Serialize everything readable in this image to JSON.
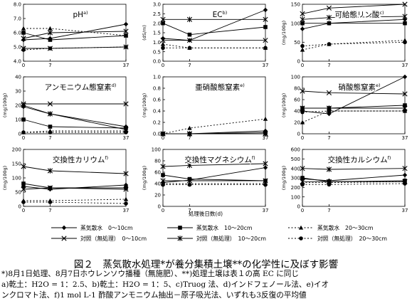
{
  "figure": {
    "caption": "図２　蒸気散水処理*が養分集積土壌**の化学性に及ぼす影響",
    "notes": [
      "*)8月1日処理、8月7日ホウレンソウ播種（無施肥）、**)処理土壌は表１の高 EC に同じ",
      "a)乾土：H2O = 1：2.5、b)乾土：H2O = 1：5、c)Truog 法、d)インドフェノール法、e)イオ",
      "ンクロマト法、f)1 mol L-1 酢酸アンモニウム抽出－原子吸光法、いずれも3反復の平均値"
    ]
  },
  "legend": {
    "items": [
      {
        "label": "蒸気散水　0～10cm",
        "marker": "diamond",
        "dash": "solid",
        "color": "#000000"
      },
      {
        "label": "蒸気散水　10～20cm",
        "marker": "square",
        "dash": "solid",
        "color": "#000000"
      },
      {
        "label": "蒸気散水　20～30cm",
        "marker": "triangle",
        "dash": "dotted",
        "color": "#000000"
      },
      {
        "label": "対照（無処理）　0～10cm",
        "marker": "x",
        "dash": "solid",
        "color": "#000000"
      },
      {
        "label": "対照（無処理）　10～20cm",
        "marker": "star",
        "dash": "solid",
        "color": "#000000"
      },
      {
        "label": "対照（無処理）　20～30cm",
        "marker": "circle",
        "dash": "dotted",
        "color": "#000000"
      }
    ]
  },
  "chart_data": [
    {
      "type": "line",
      "title": "pH",
      "title_sup": "a)",
      "ylabel": "",
      "x": [
        0,
        7,
        37
      ],
      "xticks": [
        "0",
        "7",
        "37"
      ],
      "ylim": [
        4.0,
        8.0
      ],
      "yticks": [
        "4.0",
        "5.0",
        "6.0",
        "7.0",
        "8.0"
      ],
      "grid": false,
      "series": [
        {
          "values": [
            5.5,
            5.6,
            6.6
          ]
        },
        {
          "values": [
            6.0,
            5.5,
            5.8
          ]
        },
        {
          "values": [
            6.3,
            6.3,
            5.8
          ]
        },
        {
          "values": [
            4.9,
            4.9,
            5.0
          ]
        },
        {
          "values": [
            5.6,
            6.0,
            6.1
          ]
        },
        {
          "values": [
            4.8,
            4.9,
            5.0
          ]
        }
      ]
    },
    {
      "type": "line",
      "title": "EC",
      "title_sup": "b)",
      "ylabel": "(dS/m)",
      "x": [
        0,
        7,
        37
      ],
      "xticks": [
        "0",
        "7",
        "37"
      ],
      "ylim": [
        0.0,
        3.0
      ],
      "yticks": [
        "0.0",
        "0.5",
        "1.0",
        "1.5",
        "2.0",
        "2.5",
        "3.0"
      ],
      "grid": false,
      "series": [
        {
          "values": [
            1.2,
            1.1,
            2.7
          ]
        },
        {
          "values": [
            2.0,
            1.4,
            1.8
          ]
        },
        {
          "values": [
            0.9,
            0.7,
            0.7
          ]
        },
        {
          "values": [
            1.1,
            1.1,
            1.1
          ]
        },
        {
          "values": [
            2.2,
            2.2,
            2.2
          ]
        },
        {
          "values": [
            0.7,
            0.7,
            0.7
          ]
        }
      ]
    },
    {
      "type": "line",
      "title": "可給態リン酸",
      "title_sup": "c)",
      "ylabel": "(mg/100g)",
      "x": [
        0,
        7,
        37
      ],
      "xticks": [
        "0",
        "7",
        "37"
      ],
      "ylim": [
        0,
        150
      ],
      "yticks": [
        "0",
        "50",
        "100",
        "150"
      ],
      "grid": false,
      "series": [
        {
          "values": [
            85,
            100,
            110
          ]
        },
        {
          "values": [
            100,
            100,
            100
          ]
        },
        {
          "values": [
            30,
            45,
            55
          ]
        },
        {
          "values": [
            125,
            140,
            150
          ]
        },
        {
          "values": [
            110,
            115,
            118
          ]
        },
        {
          "values": [
            40,
            45,
            50
          ]
        }
      ]
    },
    {
      "type": "line",
      "title": "アンモニウム態窒素",
      "title_sup": "d)",
      "ylabel": "(mg/100g)",
      "x": [
        0,
        7,
        37
      ],
      "xticks": [
        "0",
        "7",
        "37"
      ],
      "ylim": [
        0,
        40
      ],
      "yticks": [
        "0",
        "10",
        "20",
        "30",
        "40"
      ],
      "grid": false,
      "series": [
        {
          "values": [
            19,
            14,
            5
          ]
        },
        {
          "values": [
            10,
            5,
            4
          ]
        },
        {
          "values": [
            1,
            2,
            2
          ]
        },
        {
          "values": [
            21,
            21,
            21
          ]
        },
        {
          "values": [
            20,
            14,
            3
          ]
        },
        {
          "values": [
            1,
            1,
            1
          ]
        }
      ]
    },
    {
      "type": "line",
      "title": "亜硝酸態窒素",
      "title_sup": "e)",
      "ylabel": "(mg/100g)",
      "x": [
        0,
        7,
        37
      ],
      "xticks": [
        "0",
        "7",
        "37"
      ],
      "ylim": [
        0.0,
        1.0
      ],
      "yticks": [
        "0.0",
        "0.2",
        "0.4",
        "0.6",
        "0.8",
        "1.0"
      ],
      "grid": false,
      "series": [
        {
          "values": [
            0.0,
            0.0,
            0.05
          ]
        },
        {
          "values": [
            0.0,
            0.0,
            0.02
          ]
        },
        {
          "values": [
            0.0,
            0.1,
            0.26
          ]
        },
        {
          "values": [
            0.0,
            0.0,
            0.0
          ]
        },
        {
          "values": [
            0.0,
            0.0,
            0.0
          ]
        },
        {
          "values": [
            0.0,
            0.0,
            0.0
          ]
        }
      ]
    },
    {
      "type": "line",
      "title": "硝酸態窒素",
      "title_sup": "e)",
      "ylabel": "(mg/100g)",
      "x": [
        0,
        7,
        37
      ],
      "xticks": [
        "0",
        "7",
        "37"
      ],
      "ylim": [
        0,
        100
      ],
      "yticks": [
        "0",
        "20",
        "40",
        "60",
        "80",
        "100"
      ],
      "grid": false,
      "series": [
        {
          "values": [
            40,
            35,
            100
          ]
        },
        {
          "values": [
            45,
            45,
            50
          ]
        },
        {
          "values": [
            20,
            40,
            40
          ]
        },
        {
          "values": [
            75,
            72,
            70
          ]
        },
        {
          "values": [
            45,
            45,
            45
          ]
        },
        {
          "values": [
            38,
            40,
            40
          ]
        }
      ]
    },
    {
      "type": "line",
      "title": "交換性カリウム",
      "title_sup": "f)",
      "ylabel": "(mg/100g)",
      "x": [
        0,
        7,
        37
      ],
      "xticks": [
        "0",
        "7",
        "37"
      ],
      "ylim": [
        0,
        200
      ],
      "yticks": [
        "0",
        "50",
        "100",
        "150",
        "200"
      ],
      "grid": false,
      "series": [
        {
          "values": [
            70,
            60,
            75
          ]
        },
        {
          "values": [
            80,
            65,
            65
          ]
        },
        {
          "values": [
            20,
            20,
            25
          ]
        },
        {
          "values": [
            60,
            65,
            60
          ]
        },
        {
          "values": [
            140,
            125,
            115
          ]
        },
        {
          "values": [
            15,
            15,
            10
          ]
        }
      ]
    },
    {
      "type": "line",
      "title": "交換性マグネシウム",
      "title_sup": "f)",
      "ylabel": "(mg/100g)",
      "x": [
        0,
        7,
        37
      ],
      "xticks": [
        "0",
        "7",
        "37"
      ],
      "ylim": [
        0,
        100
      ],
      "yticks": [
        "0",
        "20",
        "40",
        "60",
        "80",
        "100"
      ],
      "grid": false,
      "series": [
        {
          "values": [
            42,
            46,
            68
          ]
        },
        {
          "values": [
            55,
            48,
            45
          ]
        },
        {
          "values": [
            40,
            40,
            40
          ]
        },
        {
          "values": [
            45,
            45,
            45
          ]
        },
        {
          "values": [
            70,
            72,
            75
          ]
        },
        {
          "values": [
            38,
            38,
            38
          ]
        }
      ]
    },
    {
      "type": "line",
      "title": "交換性カルシウム",
      "title_sup": "f)",
      "ylabel": "(mg/100g)",
      "x": [
        0,
        7,
        37
      ],
      "xticks": [
        "0",
        "7",
        "37"
      ],
      "ylim": [
        0,
        600
      ],
      "yticks": [
        "0",
        "100",
        "200",
        "300",
        "400",
        "500",
        "600"
      ],
      "grid": false,
      "series": [
        {
          "values": [
            290,
            270,
            330
          ]
        },
        {
          "values": [
            300,
            260,
            270
          ]
        },
        {
          "values": [
            250,
            250,
            260
          ]
        },
        {
          "values": [
            260,
            260,
            260
          ]
        },
        {
          "values": [
            400,
            390,
            400
          ]
        },
        {
          "values": [
            230,
            230,
            240
          ]
        }
      ]
    }
  ],
  "xaxis_label": "処理後日数(d)"
}
